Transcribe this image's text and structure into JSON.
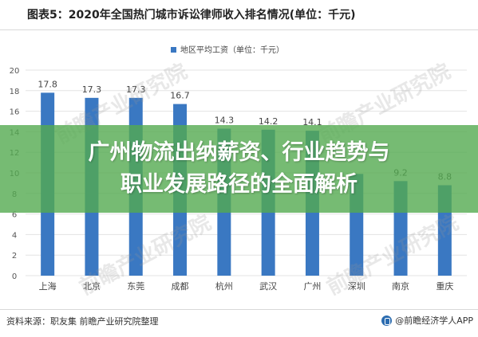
{
  "header": {
    "title": "图表5：2020年全国热门城市诉讼律师收入排名情况(单位：千元)"
  },
  "banner": {
    "line1": "广州物流出纳薪资、行业趋势与",
    "line2": "职业发展路径的全面解析"
  },
  "footer": {
    "source": "资料来源：职友集 前瞻产业研究院整理",
    "brand": "@前瞻经济学人APP"
  },
  "watermark": {
    "text": "前瞻产业研究院"
  },
  "colors": {
    "bar": "#3a78c2",
    "grid": "#e3e3e3",
    "banner": "#54aa50"
  },
  "chart_data": {
    "type": "bar",
    "legend": "地区平均工资（单位：千元）",
    "legend_position": "top-center",
    "categories": [
      "上海",
      "北京",
      "东莞",
      "成都",
      "杭州",
      "武汉",
      "广州",
      "深圳",
      "南京",
      "重庆"
    ],
    "values": [
      17.8,
      17.3,
      17.3,
      16.7,
      14.3,
      14.2,
      14.1,
      9.9,
      9.2,
      8.8
    ],
    "value_labels": [
      "17.8",
      "17.3",
      "17.3",
      "16.7",
      "14.3",
      "14.2",
      "14.1",
      "",
      "9.2",
      "8.8"
    ],
    "ylim": [
      0,
      20
    ],
    "yticks": [
      "0",
      "2",
      "4",
      "6",
      "8",
      "10",
      "12",
      "14",
      "16",
      "18",
      "20"
    ],
    "grid": true
  }
}
